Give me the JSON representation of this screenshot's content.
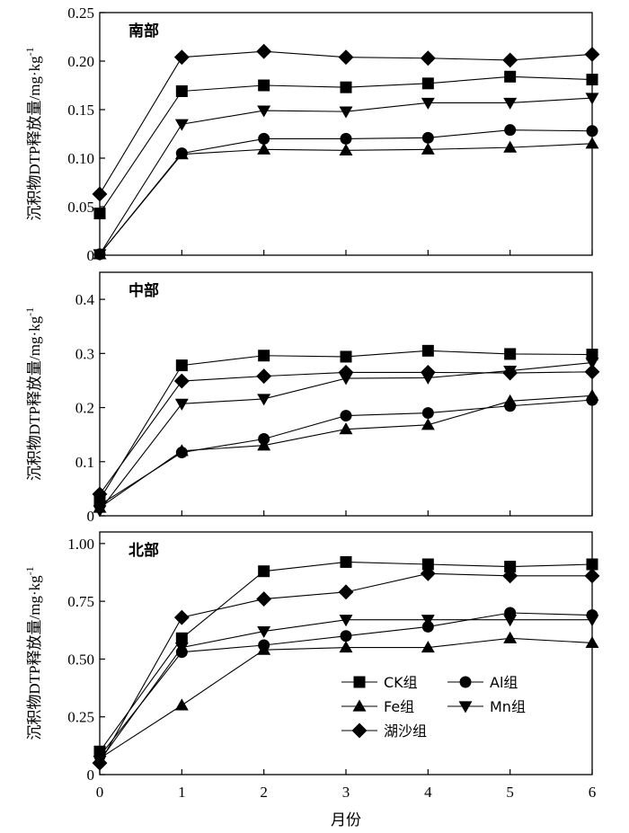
{
  "chart_data": {
    "type": "line",
    "xlabel": "月份",
    "x": [
      0,
      1,
      2,
      3,
      4,
      5,
      6
    ],
    "x_ticks": [
      "0",
      "1",
      "2",
      "3",
      "4",
      "5",
      "6"
    ],
    "legend": {
      "placement": "bottom-right of bottom panel",
      "entries": [
        {
          "key": "ck",
          "label": "CK组",
          "marker": "square"
        },
        {
          "key": "al",
          "label": "Al组",
          "marker": "circle"
        },
        {
          "key": "fe",
          "label": "Fe组",
          "marker": "triangle-up"
        },
        {
          "key": "mn",
          "label": "Mn组",
          "marker": "triangle-down"
        },
        {
          "key": "hs",
          "label": "湖沙组",
          "marker": "diamond"
        }
      ]
    },
    "panels": [
      {
        "name": "south",
        "title": "南部",
        "ylabel": "沉积物DTP释放量/mg·kg",
        "ylabel_sup": "-1",
        "ylim": [
          0,
          0.25
        ],
        "yticks": [
          0,
          0.05,
          0.1,
          0.15,
          0.2,
          0.25
        ],
        "ytick_labels": [
          "0",
          "0.05",
          "0.10",
          "0.15",
          "0.20",
          "0.25"
        ],
        "series": [
          {
            "key": "ck",
            "values": [
              0.043,
              0.169,
              0.175,
              0.173,
              0.177,
              0.184,
              0.181
            ]
          },
          {
            "key": "al",
            "values": [
              0.001,
              0.105,
              0.12,
              0.12,
              0.121,
              0.129,
              0.128
            ]
          },
          {
            "key": "fe",
            "values": [
              0.001,
              0.104,
              0.109,
              0.108,
              0.109,
              0.111,
              0.115
            ]
          },
          {
            "key": "mn",
            "values": [
              0.001,
              0.135,
              0.149,
              0.148,
              0.157,
              0.157,
              0.162
            ]
          },
          {
            "key": "hs",
            "values": [
              0.063,
              0.204,
              0.21,
              0.204,
              0.203,
              0.201,
              0.207
            ]
          }
        ]
      },
      {
        "name": "middle",
        "title": "中部",
        "ylabel": "沉积物DTP释放量/mg·kg",
        "ylabel_sup": "-1",
        "ylim": [
          0,
          0.45
        ],
        "yticks": [
          0,
          0.1,
          0.2,
          0.3,
          0.4
        ],
        "ytick_labels": [
          "0",
          "0.1",
          "0.2",
          "0.3",
          "0.4"
        ],
        "series": [
          {
            "key": "ck",
            "values": [
              0.03,
              0.278,
              0.296,
              0.294,
              0.305,
              0.299,
              0.298
            ]
          },
          {
            "key": "al",
            "values": [
              0.02,
              0.117,
              0.142,
              0.185,
              0.19,
              0.203,
              0.214
            ]
          },
          {
            "key": "fe",
            "values": [
              0.015,
              0.12,
              0.13,
              0.16,
              0.168,
              0.212,
              0.222
            ]
          },
          {
            "key": "mn",
            "values": [
              0.01,
              0.207,
              0.216,
              0.254,
              0.255,
              0.268,
              0.283
            ]
          },
          {
            "key": "hs",
            "values": [
              0.04,
              0.249,
              0.258,
              0.265,
              0.265,
              0.264,
              0.266
            ]
          }
        ]
      },
      {
        "name": "north",
        "title": "北部",
        "ylabel": "沉积物DTP释放量/mg·kg",
        "ylabel_sup": "-1",
        "ylim": [
          0,
          1.05
        ],
        "yticks": [
          0,
          0.25,
          0.5,
          0.75,
          1.0
        ],
        "ytick_labels": [
          "0",
          "0.25",
          "0.50",
          "0.75",
          "1.00"
        ],
        "series": [
          {
            "key": "ck",
            "values": [
              0.1,
              0.59,
              0.88,
              0.92,
              0.91,
              0.9,
              0.91
            ]
          },
          {
            "key": "al",
            "values": [
              0.08,
              0.53,
              0.56,
              0.6,
              0.64,
              0.7,
              0.69
            ]
          },
          {
            "key": "fe",
            "values": [
              0.07,
              0.3,
              0.54,
              0.55,
              0.55,
              0.59,
              0.57
            ]
          },
          {
            "key": "mn",
            "values": [
              0.06,
              0.55,
              0.62,
              0.67,
              0.67,
              0.67,
              0.67
            ]
          },
          {
            "key": "hs",
            "values": [
              0.05,
              0.68,
              0.76,
              0.79,
              0.87,
              0.86,
              0.86
            ]
          }
        ]
      }
    ]
  }
}
